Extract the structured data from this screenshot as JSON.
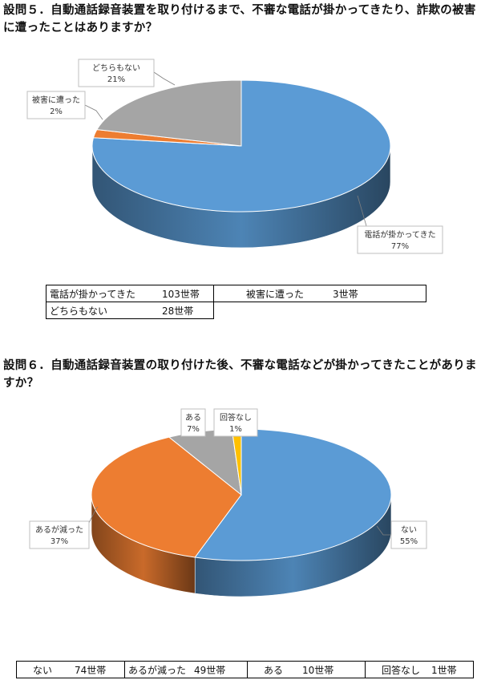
{
  "q5": {
    "text": "設問５．自動通話録音装置を取り付けるまで、不審な電話が掛かってきたり、詐欺の被害に遭ったことはありますか？",
    "chart_data": {
      "type": "pie",
      "categories": [
        "電話が掛かってきた",
        "被害に遭った",
        "どちらもない"
      ],
      "values": [
        77,
        2,
        21
      ],
      "value_labels": [
        "77%",
        "2%",
        "21%"
      ],
      "colors": [
        "#5b9bd5",
        "#ed7d31",
        "#a5a5a5"
      ]
    },
    "table": [
      {
        "label": "電話が掛かってきた",
        "count": "103世帯"
      },
      {
        "label": "被害に遭った",
        "count": "3世帯"
      },
      {
        "label": "どちらもない",
        "count": "28世帯"
      }
    ]
  },
  "q6": {
    "text": "設問６．自動通話録音装置の取り付けた後、不審な電話などが掛かってきたことがありますか？",
    "chart_data": {
      "type": "pie",
      "categories": [
        "ない",
        "あるが減った",
        "ある",
        "回答なし"
      ],
      "values": [
        55,
        37,
        7,
        1
      ],
      "value_labels": [
        "55%",
        "37%",
        "7%",
        "1%"
      ],
      "colors": [
        "#5b9bd5",
        "#ed7d31",
        "#a5a5a5",
        "#ffc000"
      ]
    },
    "table": [
      {
        "label": "ない",
        "count": "74世帯"
      },
      {
        "label": "あるが減った",
        "count": "49世帯"
      },
      {
        "label": "ある",
        "count": "10世帯"
      },
      {
        "label": "回答なし",
        "count": "1世帯"
      }
    ]
  }
}
